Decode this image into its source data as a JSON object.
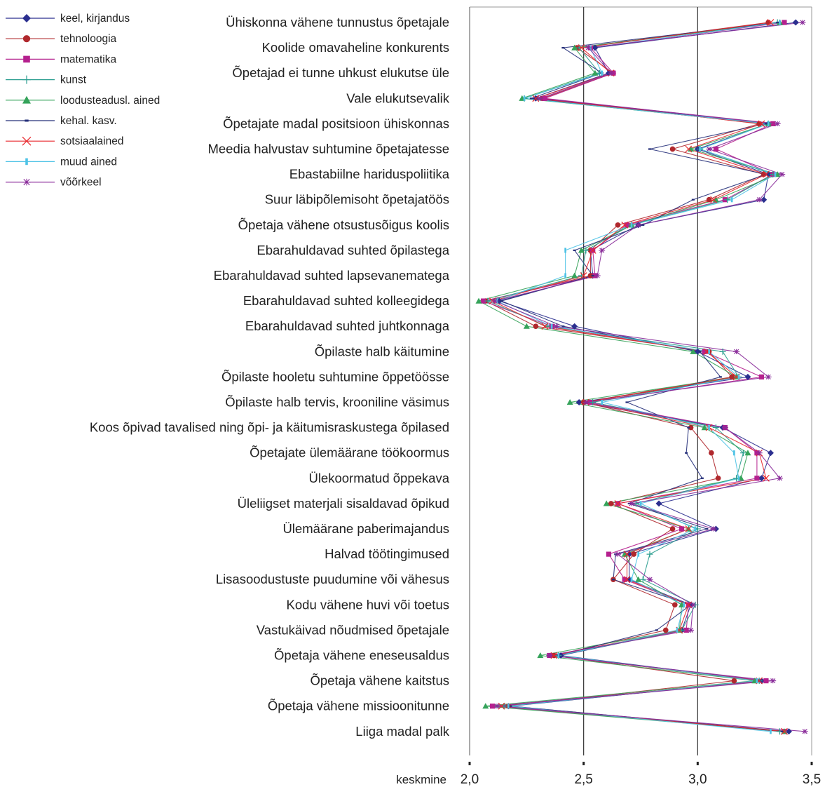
{
  "chart_data": {
    "type": "line",
    "orientation": "horizontal",
    "categories": [
      "Ühiskonna vähene tunnustus õpetajale",
      "Koolide omavaheline konkurents",
      "Õpetajad ei tunne uhkust elukutse üle",
      "Vale elukutsevalik",
      "Õpetajate madal positsioon ühiskonnas",
      "Meedia halvustav suhtumine õpetajatesse",
      "Ebastabiilne hariduspoliitika",
      "Suur läbipõlemisoht õpetajatöös",
      "Õpetaja vähene otsustusõigus koolis",
      "Ebarahuldavad suhted õpilastega",
      "Ebarahuldavad suhted lapsevanematega",
      "Ebarahuldavad suhted kolleegidega",
      "Ebarahuldavad suhted juhtkonnaga",
      "Õpilaste halb käitumine",
      "Õpilaste hooletu suhtumine õppetöösse",
      "Õpilaste halb tervis, krooniline väsimus",
      "Koos õpivad tavalised ning õpi- ja käitumisraskustega õpilased",
      "Õpetajate ülemäärane töökoormus",
      "Ülekoormatud õppekava",
      "Üleliigset materjali sisaldavad õpikud",
      "Ülemäärane paberimajandus",
      "Halvad töötingimused",
      "Lisasoodustuste puudumine või vähesus",
      "Kodu vähene huvi või toetus",
      "Vastukäivad nõudmised õpetajale",
      "Õpetaja vähene eneseusaldus",
      "Õpetaja vähene kaitstus",
      "Õpetaja vähene missioonitunne",
      "Liiga madal palk"
    ],
    "series": [
      {
        "name": "keel, kirjandus",
        "color": "#2b2f8f",
        "marker": "diamond",
        "values": [
          3.43,
          2.55,
          2.61,
          2.29,
          3.31,
          3.0,
          3.31,
          3.29,
          2.74,
          2.53,
          2.54,
          2.13,
          2.46,
          3.0,
          3.22,
          2.48,
          3.11,
          3.32,
          3.28,
          2.83,
          3.08,
          2.7,
          2.7,
          2.97,
          2.93,
          2.4,
          3.28,
          2.17,
          3.4
        ]
      },
      {
        "name": "tehnoloogia",
        "color": "#b0282d",
        "marker": "circle",
        "values": [
          3.31,
          2.47,
          2.63,
          2.32,
          3.27,
          2.89,
          3.29,
          3.05,
          2.65,
          2.53,
          2.53,
          2.07,
          2.29,
          3.05,
          3.15,
          2.5,
          2.97,
          3.06,
          3.09,
          2.62,
          2.89,
          2.72,
          2.63,
          2.9,
          2.86,
          2.37,
          3.16,
          2.17,
          3.38
        ]
      },
      {
        "name": "matematika",
        "color": "#b5208e",
        "marker": "square",
        "values": [
          3.38,
          2.53,
          2.63,
          2.33,
          3.33,
          3.08,
          3.33,
          3.12,
          2.69,
          2.54,
          2.55,
          2.06,
          2.36,
          3.03,
          3.28,
          2.53,
          3.12,
          3.26,
          3.26,
          2.65,
          2.93,
          2.61,
          2.68,
          2.96,
          2.95,
          2.35,
          3.3,
          2.1,
          3.38
        ]
      },
      {
        "name": "kunst",
        "color": "#2a9d8f",
        "marker": "plus",
        "values": [
          3.35,
          2.48,
          2.57,
          2.24,
          3.31,
          3.01,
          3.33,
          3.13,
          2.71,
          2.51,
          2.49,
          2.08,
          2.34,
          3.11,
          3.18,
          2.54,
          3.08,
          3.2,
          3.17,
          2.73,
          3.0,
          2.79,
          2.76,
          2.99,
          2.93,
          2.39,
          3.27,
          2.15,
          3.36
        ]
      },
      {
        "name": "loodusteadusl. ained",
        "color": "#35a35a",
        "marker": "triangle",
        "values": [
          3.36,
          2.46,
          2.55,
          2.23,
          3.31,
          2.97,
          3.35,
          3.08,
          2.71,
          2.49,
          2.46,
          2.04,
          2.25,
          2.98,
          3.17,
          2.44,
          3.03,
          3.22,
          3.19,
          2.6,
          2.96,
          2.68,
          2.74,
          2.93,
          2.92,
          2.31,
          3.25,
          2.07,
          3.38
        ]
      },
      {
        "name": "kehal. kasv.",
        "color": "#26307a",
        "marker": "dash",
        "values": [
          3.35,
          2.41,
          2.58,
          2.27,
          3.3,
          2.79,
          3.3,
          2.98,
          2.76,
          2.46,
          2.54,
          2.14,
          2.41,
          3.01,
          3.1,
          2.69,
          2.96,
          2.95,
          3.02,
          2.7,
          3.04,
          2.64,
          2.63,
          2.97,
          2.82,
          2.39,
          3.27,
          2.18,
          3.37
        ]
      },
      {
        "name": "sotsiaalained",
        "color": "#e8282d",
        "marker": "cross",
        "values": [
          3.32,
          2.49,
          2.62,
          2.29,
          3.28,
          2.96,
          3.3,
          3.07,
          2.68,
          2.54,
          2.5,
          2.1,
          2.33,
          3.04,
          3.17,
          2.51,
          3.05,
          3.27,
          3.3,
          2.65,
          2.96,
          2.69,
          2.69,
          2.96,
          2.92,
          2.37,
          3.27,
          2.14,
          3.38
        ]
      },
      {
        "name": "muud ained",
        "color": "#4fc3e6",
        "marker": "bar",
        "values": [
          3.36,
          2.53,
          2.58,
          2.24,
          3.31,
          3.01,
          3.34,
          3.15,
          2.71,
          2.42,
          2.42,
          2.12,
          2.36,
          3.05,
          3.18,
          2.58,
          3.05,
          3.16,
          3.18,
          2.75,
          2.99,
          2.74,
          2.71,
          2.94,
          2.91,
          2.39,
          3.26,
          2.17,
          3.32
        ]
      },
      {
        "name": "võõrkeel",
        "color": "#8a2c9a",
        "marker": "star",
        "values": [
          3.46,
          2.52,
          2.62,
          2.31,
          3.35,
          3.05,
          3.37,
          3.27,
          2.74,
          2.58,
          2.56,
          2.11,
          2.38,
          3.17,
          3.31,
          2.51,
          3.12,
          3.27,
          3.36,
          2.71,
          3.07,
          2.65,
          2.79,
          2.98,
          2.97,
          2.35,
          3.33,
          2.12,
          3.47
        ]
      }
    ],
    "x_tick_labels": [
      "2,0",
      "2,5",
      "3,0",
      "3,5"
    ],
    "x_ticks": [
      2.0,
      2.5,
      3.0,
      3.5
    ],
    "xlim": [
      2.0,
      3.5
    ],
    "xlabel": "keskmine",
    "gridlines": [
      2.5,
      3.0
    ],
    "legend_position": "top-left"
  }
}
